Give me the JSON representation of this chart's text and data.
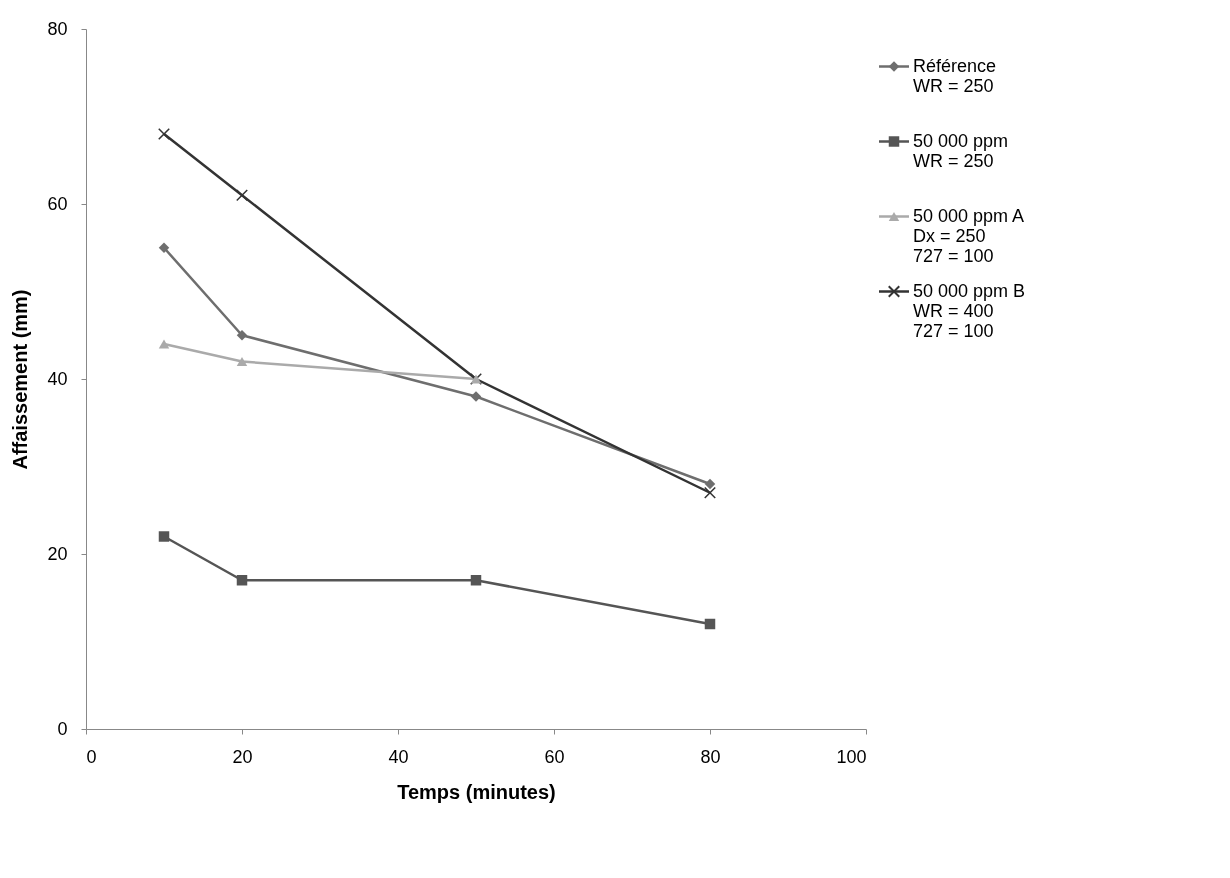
{
  "chart_data": {
    "type": "line",
    "xlabel": "Temps (minutes)",
    "ylabel": "Affaissement (mm)",
    "x": [
      10,
      20,
      50,
      80
    ],
    "xlim": [
      0,
      100
    ],
    "xticks": [
      0,
      20,
      40,
      60,
      80,
      100
    ],
    "ylim": [
      0,
      80
    ],
    "yticks": [
      0,
      20,
      40,
      60,
      80
    ],
    "grid": false,
    "legend": "right",
    "series": [
      {
        "name": "Référence\nWR = 250",
        "color": "#6e6e6e",
        "marker": "diamond",
        "values": [
          55,
          45,
          38,
          28
        ]
      },
      {
        "name": "50 000 ppm\nWR = 250",
        "color": "#555555",
        "marker": "square",
        "values": [
          22,
          17,
          17,
          12
        ]
      },
      {
        "name": "50 000 ppm A\nDx = 250\n727 = 100",
        "color": "#aaaaaa",
        "marker": "triangle",
        "values": [
          44,
          42,
          40,
          null
        ]
      },
      {
        "name": "50 000 ppm B\nWR = 400\n727 = 100",
        "color": "#333333",
        "marker": "cross",
        "values": [
          68,
          61,
          40,
          27
        ]
      }
    ]
  }
}
